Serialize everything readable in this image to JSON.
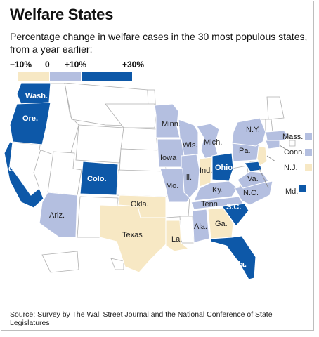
{
  "title": "Welfare States",
  "subtitle": "Percentage change in welfare cases in the 30 most populous states, from a year earlier:",
  "legend": {
    "ticks": [
      "−10%",
      "0",
      "+10%",
      "+30%"
    ],
    "bins": [
      {
        "range": "-10% to 0",
        "color": "#f7e8c4"
      },
      {
        "range": "0 to +10%",
        "color": "#b4bfe0"
      },
      {
        "range": "+10% to +30%",
        "color": "#0d58a8"
      }
    ]
  },
  "colors": {
    "decline": "#f7e8c4",
    "small_increase": "#b4bfe0",
    "large_increase": "#0d58a8",
    "not_in_top_30": "#ffffff",
    "state_border": "#b0b0b0"
  },
  "states": {
    "large_increase": [
      "Wash.",
      "Ore.",
      "Calif.",
      "Colo.",
      "Ohio",
      "S.C.",
      "Fla.",
      "Md."
    ],
    "small_increase": [
      "Ariz.",
      "Minn.",
      "Wis.",
      "Mich.",
      "Iowa",
      "Ill.",
      "Mo.",
      "Ky.",
      "Tenn.",
      "Ala.",
      "N.C.",
      "Va.",
      "Pa.",
      "N.Y.",
      "Mass.",
      "Conn."
    ],
    "decline": [
      "Okla.",
      "Texas",
      "La.",
      "Ind.",
      "Ga.",
      "N.J."
    ]
  },
  "source": "Source: Survey by The Wall Street Journal and the National Conference of State Legislatures"
}
